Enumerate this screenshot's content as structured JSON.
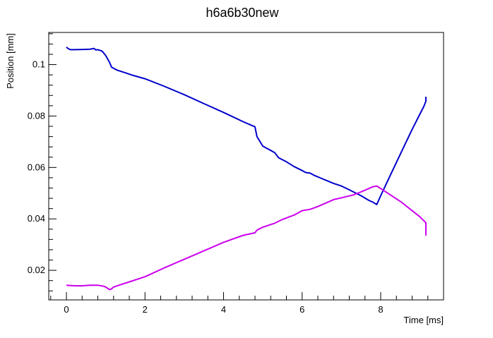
{
  "chart_data": {
    "type": "line",
    "title": "h6a6b30new",
    "xlabel": "Time [ms]",
    "ylabel": "Position [mm]",
    "xlim": [
      -0.45,
      9.6
    ],
    "ylim": [
      0.0085,
      0.1125
    ],
    "x_ticks": [
      0,
      2,
      4,
      6,
      8
    ],
    "x_tick_labels": [
      "0",
      "2",
      "4",
      "6",
      "8"
    ],
    "x_minor_step": 0.4,
    "y_ticks": [
      0.02,
      0.04,
      0.06,
      0.08,
      0.1
    ],
    "y_tick_labels": [
      "0.02",
      "0.04",
      "0.06",
      "0.08",
      "0.1"
    ],
    "y_minor_step": 0.004,
    "grid": false,
    "series": [
      {
        "color": "#0000cc",
        "x": [
          0.0,
          0.05,
          0.1,
          0.2,
          0.4,
          0.6,
          0.7,
          0.75,
          0.8,
          0.9,
          0.95,
          1.0,
          1.05,
          1.1,
          1.15,
          1.3,
          1.5,
          1.7,
          2.0,
          2.5,
          3.0,
          3.5,
          4.0,
          4.5,
          4.8,
          4.85,
          5.0,
          5.3,
          5.4,
          5.6,
          5.8,
          6.0,
          6.1,
          6.2,
          6.3,
          6.5,
          6.8,
          7.0,
          7.2,
          7.5,
          7.7,
          7.8,
          7.9,
          8.0,
          8.2,
          8.5,
          8.8,
          9.0,
          9.1,
          9.15,
          9.15
        ],
        "y": [
          0.1068,
          0.1062,
          0.1058,
          0.1058,
          0.1059,
          0.106,
          0.1063,
          0.1057,
          0.1058,
          0.1053,
          0.1045,
          0.1035,
          0.1022,
          0.1008,
          0.099,
          0.0978,
          0.0968,
          0.0958,
          0.0945,
          0.0915,
          0.0883,
          0.0848,
          0.0814,
          0.0778,
          0.0758,
          0.072,
          0.0683,
          0.0658,
          0.0638,
          0.0622,
          0.0603,
          0.0588,
          0.058,
          0.0578,
          0.057,
          0.0557,
          0.0538,
          0.0528,
          0.0513,
          0.049,
          0.0472,
          0.0465,
          0.0456,
          0.049,
          0.0555,
          0.0652,
          0.0748,
          0.0808,
          0.0838,
          0.0858,
          0.0875
        ]
      },
      {
        "color": "#cc00ee",
        "x": [
          0.0,
          0.2,
          0.4,
          0.6,
          0.8,
          0.95,
          1.0,
          1.05,
          1.1,
          1.15,
          1.2,
          1.4,
          1.6,
          2.0,
          2.5,
          3.0,
          3.5,
          4.0,
          4.5,
          4.8,
          4.85,
          5.0,
          5.3,
          5.5,
          5.8,
          6.0,
          6.2,
          6.4,
          6.8,
          7.0,
          7.3,
          7.5,
          7.8,
          7.9,
          8.0,
          8.5,
          9.0,
          9.15,
          9.15
        ],
        "y": [
          0.0142,
          0.014,
          0.014,
          0.0142,
          0.0142,
          0.0138,
          0.0135,
          0.013,
          0.0125,
          0.0128,
          0.0135,
          0.0145,
          0.0155,
          0.0175,
          0.021,
          0.0243,
          0.0276,
          0.0309,
          0.0336,
          0.0346,
          0.0356,
          0.0368,
          0.0383,
          0.0398,
          0.0415,
          0.0432,
          0.0437,
          0.0448,
          0.0475,
          0.0482,
          0.0493,
          0.0505,
          0.0525,
          0.0528,
          0.0518,
          0.0468,
          0.0408,
          0.0385,
          0.0335
        ]
      }
    ]
  }
}
